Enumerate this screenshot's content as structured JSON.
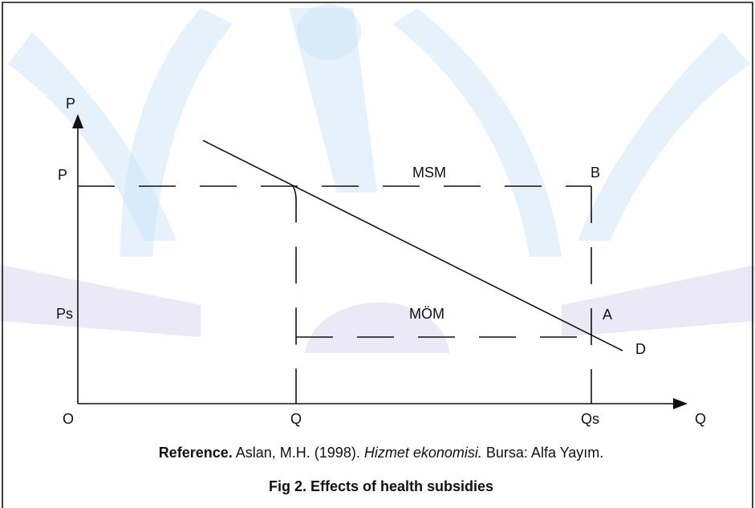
{
  "diagram": {
    "axes": {
      "y_label": "P",
      "x_label": "Q",
      "origin": "O"
    },
    "labels": {
      "p": "P",
      "ps": "Ps",
      "q": "Q",
      "qs": "Qs",
      "b": "B",
      "a": "A",
      "d": "D",
      "msm": "MSM",
      "mom": "MÖM"
    },
    "reference": {
      "lead": "Reference.",
      "authors": "Aslan, M.H. (1998).",
      "book": "Hizmet ekonomisi.",
      "publisher": "Bursa: Alfa Yayım."
    },
    "caption": "Fig 2. Effects of health subsidies"
  }
}
